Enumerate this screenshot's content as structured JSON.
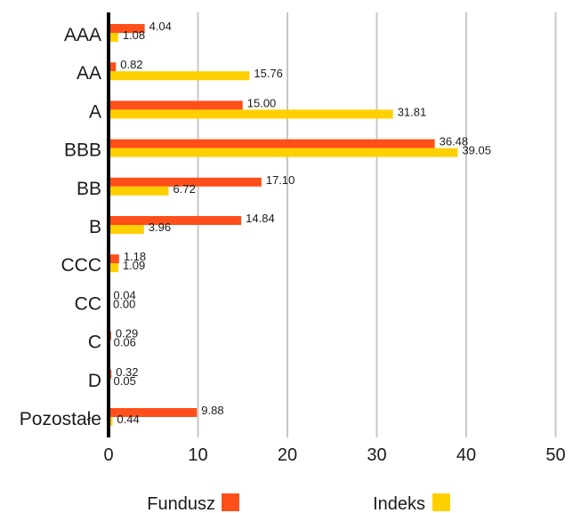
{
  "chart_data": {
    "type": "bar",
    "orientation": "horizontal",
    "categories": [
      "AAA",
      "AA",
      "A",
      "BBB",
      "BB",
      "B",
      "CCC",
      "CC",
      "C",
      "D",
      "Pozostałe"
    ],
    "series": [
      {
        "name": "Fundusz",
        "color": "#FF4F1A",
        "values": [
          4.04,
          0.82,
          15.0,
          36.48,
          17.1,
          14.84,
          1.18,
          0.04,
          0.29,
          0.32,
          9.88
        ],
        "labels": [
          "4.04",
          "0.82",
          "15.00",
          "36.48",
          "17.10",
          "14.84",
          "1.18",
          "0.04",
          "0.29",
          "0.32",
          "9.88"
        ]
      },
      {
        "name": "Indeks",
        "color": "#FFD000",
        "values": [
          1.08,
          15.76,
          31.81,
          39.05,
          6.72,
          3.96,
          1.09,
          0.0,
          0.06,
          0.05,
          0.44
        ],
        "labels": [
          "1.08",
          "15.76",
          "31.81",
          "39.05",
          "6.72",
          "3.96",
          "1.09",
          "0.00",
          "0.06",
          "0.05",
          "0.44"
        ]
      }
    ],
    "xlim": [
      0,
      50
    ],
    "xticks": [
      "0",
      "10",
      "20",
      "30",
      "40",
      "50"
    ],
    "grid": true,
    "legend_position": "bottom",
    "title": "",
    "xlabel": "",
    "ylabel": ""
  }
}
